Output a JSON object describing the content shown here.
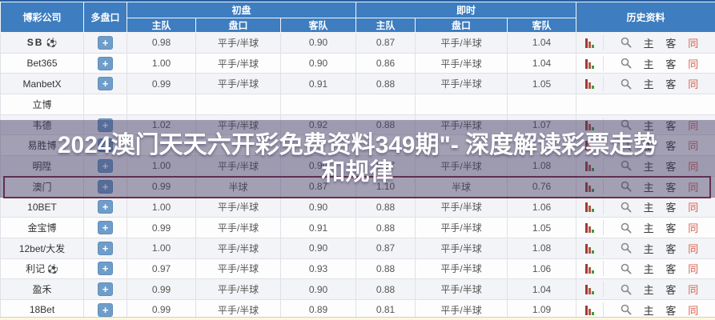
{
  "header": {
    "company": "博彩公司",
    "multi_handicap": "多盘口",
    "initial_group": "初盘",
    "live_group": "即时",
    "history_group": "历史资料",
    "home": "主队",
    "handicap": "盘口",
    "away": "客队"
  },
  "labels": {
    "plus": "+",
    "home_link": "主",
    "away_link": "客",
    "same_link": "同"
  },
  "icons": {
    "soccer_ball": "⚽"
  },
  "colors": {
    "header_blue": "#3d7dc0",
    "plus_button_blue": "#6f9dca",
    "same_link_red": "#d9604e",
    "highlight_border": "#7d2944",
    "overlay_purple": "rgba(62,55,97,0.47)"
  },
  "overlay": {
    "lines": [
      "2024澳门天天六开彩免费资料349期\"- 深度解读彩票走势",
      "和规律"
    ]
  },
  "rows": [
    {
      "name": "SB",
      "bold": true,
      "ball": true,
      "plus": true,
      "init": {
        "home": "0.98",
        "hcp": "平手/半球",
        "away": "0.90"
      },
      "live": {
        "home": "0.87",
        "hcp": "平手/半球",
        "away": "1.04"
      },
      "icons": true,
      "highlight": false
    },
    {
      "name": "Bet365",
      "bold": false,
      "ball": false,
      "plus": true,
      "init": {
        "home": "1.00",
        "hcp": "平手/半球",
        "away": "0.90"
      },
      "live": {
        "home": "0.86",
        "hcp": "平手/半球",
        "away": "1.04"
      },
      "icons": true,
      "highlight": false
    },
    {
      "name": "ManbetX",
      "bold": false,
      "ball": false,
      "plus": true,
      "init": {
        "home": "0.99",
        "hcp": "平手/半球",
        "away": "0.91"
      },
      "live": {
        "home": "0.88",
        "hcp": "平手/半球",
        "away": "1.05"
      },
      "icons": true,
      "highlight": false
    },
    {
      "name": "立博",
      "bold": false,
      "ball": false,
      "plus": false,
      "init": {
        "home": "",
        "hcp": "",
        "away": ""
      },
      "live": {
        "home": "",
        "hcp": "",
        "away": ""
      },
      "icons": false,
      "highlight": false
    },
    {
      "name": "韦德",
      "bold": false,
      "ball": false,
      "plus": true,
      "init": {
        "home": "1.02",
        "hcp": "平手/半球",
        "away": "0.92"
      },
      "live": {
        "home": "0.88",
        "hcp": "平手/半球",
        "away": "1.07"
      },
      "icons": true,
      "highlight": false
    },
    {
      "name": "易胜博",
      "bold": false,
      "ball": false,
      "plus": true,
      "init": {
        "home": "",
        "hcp": "",
        "away": ""
      },
      "live": {
        "home": "",
        "hcp": "",
        "away": ""
      },
      "icons": true,
      "highlight": false
    },
    {
      "name": "明陞",
      "bold": false,
      "ball": false,
      "plus": true,
      "init": {
        "home": "1.00",
        "hcp": "平手/半球",
        "away": "0.90"
      },
      "live": {
        "home": "0.97",
        "hcp": "平手/半球",
        "away": "1.08"
      },
      "icons": true,
      "highlight": false
    },
    {
      "name": "澳门",
      "bold": false,
      "ball": false,
      "plus": true,
      "init": {
        "home": "0.99",
        "hcp": "半球",
        "away": "0.87"
      },
      "live": {
        "home": "1.10",
        "hcp": "半球",
        "away": "0.76"
      },
      "icons": true,
      "highlight": true
    },
    {
      "name": "10BET",
      "bold": false,
      "ball": false,
      "plus": true,
      "init": {
        "home": "1.00",
        "hcp": "平手/半球",
        "away": "0.90"
      },
      "live": {
        "home": "0.88",
        "hcp": "平手/半球",
        "away": "1.06"
      },
      "icons": true,
      "highlight": false
    },
    {
      "name": "金宝博",
      "bold": false,
      "ball": false,
      "plus": true,
      "init": {
        "home": "0.99",
        "hcp": "平手/半球",
        "away": "0.91"
      },
      "live": {
        "home": "0.88",
        "hcp": "平手/半球",
        "away": "1.05"
      },
      "icons": true,
      "highlight": false
    },
    {
      "name": "12bet/大发",
      "bold": false,
      "ball": false,
      "plus": true,
      "init": {
        "home": "1.00",
        "hcp": "平手/半球",
        "away": "0.90"
      },
      "live": {
        "home": "0.87",
        "hcp": "平手/半球",
        "away": "1.08"
      },
      "icons": true,
      "highlight": false
    },
    {
      "name": "利记",
      "bold": false,
      "ball": true,
      "plus": true,
      "init": {
        "home": "0.97",
        "hcp": "平手/半球",
        "away": "0.93"
      },
      "live": {
        "home": "0.88",
        "hcp": "平手/半球",
        "away": "1.06"
      },
      "icons": true,
      "highlight": false
    },
    {
      "name": "盈禾",
      "bold": false,
      "ball": false,
      "plus": true,
      "init": {
        "home": "0.99",
        "hcp": "平手/半球",
        "away": "0.90"
      },
      "live": {
        "home": "0.88",
        "hcp": "平手/半球",
        "away": "1.04"
      },
      "icons": true,
      "highlight": false
    },
    {
      "name": "18Bet",
      "bold": false,
      "ball": false,
      "plus": true,
      "init": {
        "home": "0.99",
        "hcp": "平手/半球",
        "away": "0.89"
      },
      "live": {
        "home": "0.81",
        "hcp": "平手/半球",
        "away": "1.09"
      },
      "icons": true,
      "highlight": false
    }
  ]
}
